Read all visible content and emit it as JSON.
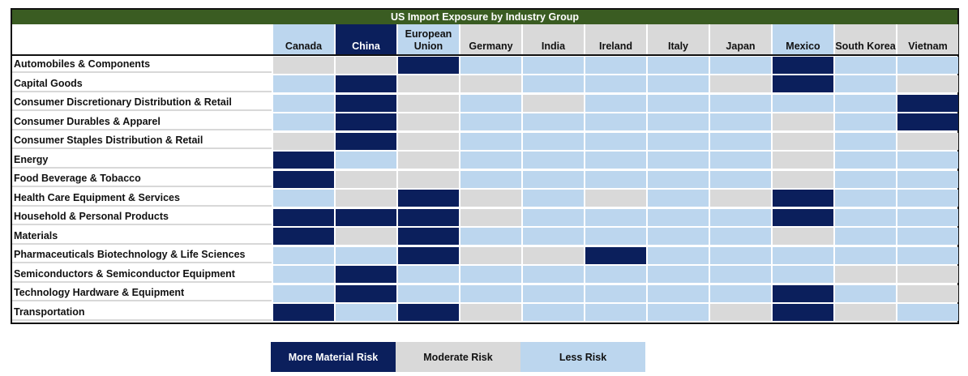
{
  "title": "US Import Exposure by Industry Group",
  "colors": {
    "title_bg": "#3a5c22",
    "high": "#0b1f5c",
    "moderate": "#d9d9d9",
    "low": "#bcd6ee"
  },
  "columns": [
    {
      "label": "Canada",
      "header_color": "#bcd6ee",
      "header_text": "#111111"
    },
    {
      "label": "China",
      "header_color": "#0b1f5c",
      "header_text": "#ffffff"
    },
    {
      "label": "European\nUnion",
      "header_color": "#bcd6ee",
      "header_text": "#111111"
    },
    {
      "label": "Germany",
      "header_color": "#d9d9d9",
      "header_text": "#111111"
    },
    {
      "label": "India",
      "header_color": "#d9d9d9",
      "header_text": "#111111"
    },
    {
      "label": "Ireland",
      "header_color": "#d9d9d9",
      "header_text": "#111111"
    },
    {
      "label": "Italy",
      "header_color": "#d9d9d9",
      "header_text": "#111111"
    },
    {
      "label": "Japan",
      "header_color": "#d9d9d9",
      "header_text": "#111111"
    },
    {
      "label": "Mexico",
      "header_color": "#bcd6ee",
      "header_text": "#111111"
    },
    {
      "label": "South Korea",
      "header_color": "#d9d9d9",
      "header_text": "#111111"
    },
    {
      "label": "Vietnam",
      "header_color": "#d9d9d9",
      "header_text": "#111111"
    }
  ],
  "chart_data": {
    "type": "heatmap",
    "title": "US Import Exposure by Industry Group",
    "levels": {
      "H": "More Material Risk",
      "M": "Moderate Risk",
      "L": "Less Risk"
    },
    "columns": [
      "Canada",
      "China",
      "European Union",
      "Germany",
      "India",
      "Ireland",
      "Italy",
      "Japan",
      "Mexico",
      "South Korea",
      "Vietnam"
    ],
    "rows": [
      {
        "label": "Automobiles & Components",
        "values": [
          "M",
          "M",
          "H",
          "L",
          "L",
          "L",
          "L",
          "L",
          "H",
          "L",
          "L"
        ]
      },
      {
        "label": "Capital Goods",
        "values": [
          "L",
          "H",
          "M",
          "M",
          "L",
          "L",
          "L",
          "M",
          "H",
          "L",
          "M"
        ]
      },
      {
        "label": "Consumer Discretionary Distribution & Retail",
        "values": [
          "L",
          "H",
          "M",
          "L",
          "M",
          "L",
          "L",
          "L",
          "L",
          "L",
          "H"
        ]
      },
      {
        "label": "Consumer Durables & Apparel",
        "values": [
          "L",
          "H",
          "M",
          "L",
          "L",
          "L",
          "L",
          "L",
          "M",
          "L",
          "H"
        ]
      },
      {
        "label": "Consumer Staples Distribution & Retail",
        "values": [
          "M",
          "H",
          "M",
          "L",
          "L",
          "L",
          "L",
          "L",
          "M",
          "L",
          "M"
        ]
      },
      {
        "label": "Energy",
        "values": [
          "H",
          "L",
          "M",
          "L",
          "L",
          "L",
          "L",
          "L",
          "M",
          "L",
          "L"
        ]
      },
      {
        "label": "Food Beverage & Tobacco",
        "values": [
          "H",
          "M",
          "M",
          "L",
          "L",
          "L",
          "L",
          "L",
          "M",
          "L",
          "L"
        ]
      },
      {
        "label": "Health Care Equipment & Services",
        "values": [
          "L",
          "M",
          "H",
          "M",
          "L",
          "M",
          "L",
          "M",
          "H",
          "L",
          "L"
        ]
      },
      {
        "label": "Household & Personal Products",
        "values": [
          "H",
          "H",
          "H",
          "M",
          "L",
          "L",
          "L",
          "L",
          "H",
          "L",
          "L"
        ]
      },
      {
        "label": "Materials",
        "values": [
          "H",
          "M",
          "H",
          "L",
          "L",
          "L",
          "L",
          "L",
          "M",
          "L",
          "L"
        ]
      },
      {
        "label": "Pharmaceuticals Biotechnology & Life Sciences",
        "values": [
          "L",
          "L",
          "H",
          "M",
          "M",
          "H",
          "L",
          "L",
          "L",
          "L",
          "L"
        ]
      },
      {
        "label": "Semiconductors & Semiconductor Equipment",
        "values": [
          "L",
          "H",
          "L",
          "L",
          "L",
          "L",
          "L",
          "L",
          "L",
          "M",
          "M"
        ]
      },
      {
        "label": "Technology Hardware & Equipment",
        "values": [
          "L",
          "H",
          "L",
          "L",
          "L",
          "L",
          "L",
          "L",
          "H",
          "L",
          "M"
        ]
      },
      {
        "label": "Transportation",
        "values": [
          "H",
          "L",
          "H",
          "M",
          "L",
          "L",
          "L",
          "M",
          "H",
          "M",
          "L"
        ]
      }
    ]
  },
  "legend": [
    {
      "label": "More Material Risk",
      "level": "H"
    },
    {
      "label": "Moderate Risk",
      "level": "M"
    },
    {
      "label": "Less Risk",
      "level": "L"
    }
  ]
}
